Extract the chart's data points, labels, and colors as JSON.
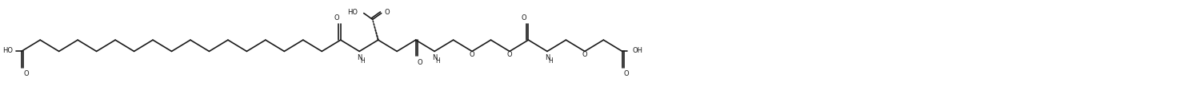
{
  "bg_color": "#ffffff",
  "line_color": "#1a1a1a",
  "lw": 1.2,
  "fig_width": 14.9,
  "fig_height": 1.38,
  "dpi": 100,
  "font_size": 6.0,
  "xlim": [
    0,
    149
  ],
  "ylim": [
    -5.5,
    9.5
  ],
  "y_base": 2.5,
  "seg_x": 2.35,
  "seg_y": 1.55
}
